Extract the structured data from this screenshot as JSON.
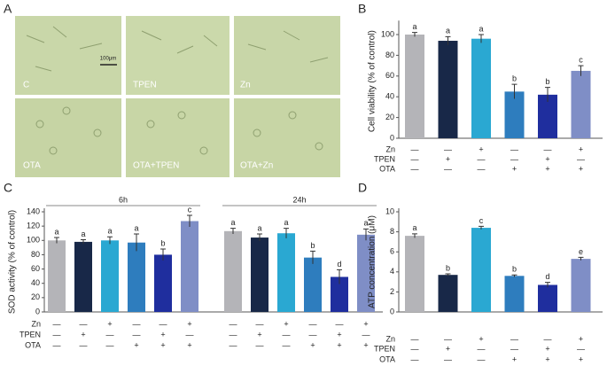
{
  "panel_a": {
    "label": "A",
    "images": [
      "C",
      "TPEN",
      "Zn",
      "OTA",
      "OTA+TPEN",
      "OTA+Zn"
    ],
    "scale_bar": "100μm"
  },
  "chart_data": [
    {
      "type": "bar",
      "panel": "B",
      "ylabel": "Cell viability (% of control)",
      "ylim": [
        0,
        110
      ],
      "yticks": [
        0,
        20,
        40,
        60,
        80,
        100
      ],
      "colors": [
        "#b4b4b8",
        "#182848",
        "#2aa8d2",
        "#2e7dbe",
        "#1f2e9e",
        "#7f8ec6"
      ],
      "values": [
        100,
        94,
        96,
        45,
        42,
        65
      ],
      "errors": [
        2,
        4,
        4,
        7,
        7,
        5
      ],
      "letters": [
        "a",
        "a",
        "a",
        "b",
        "b",
        "c"
      ],
      "treatments": [
        {
          "name": "Zn",
          "signs": [
            "—",
            "—",
            "+",
            "—",
            "—",
            "+"
          ]
        },
        {
          "name": "TPEN",
          "signs": [
            "—",
            "+",
            "—",
            "—",
            "+",
            "—"
          ]
        },
        {
          "name": "OTA",
          "signs": [
            "—",
            "—",
            "—",
            "+",
            "+",
            "+"
          ]
        }
      ]
    },
    {
      "type": "bar",
      "panel": "C",
      "ylabel": "SOD activity (% of control)",
      "ylim": [
        0,
        140
      ],
      "yticks": [
        0,
        20,
        40,
        60,
        80,
        100,
        120,
        140
      ],
      "colors": [
        "#b4b4b8",
        "#182848",
        "#2aa8d2",
        "#2e7dbe",
        "#1f2e9e",
        "#7f8ec6"
      ],
      "groups": [
        {
          "name": "6h",
          "values": [
            100,
            98,
            100,
            97,
            80,
            127
          ],
          "errors": [
            4,
            3,
            5,
            12,
            8,
            8
          ],
          "letters": [
            "a",
            "a",
            "a",
            "a",
            "b",
            "c"
          ]
        },
        {
          "name": "24h",
          "values": [
            113,
            104,
            110,
            76,
            49,
            108
          ],
          "errors": [
            4,
            5,
            7,
            9,
            10,
            8
          ],
          "letters": [
            "a",
            "a",
            "a",
            "b",
            "d",
            "a"
          ]
        }
      ],
      "treatments": [
        {
          "name": "Zn",
          "signs": [
            "—",
            "—",
            "+",
            "—",
            "—",
            "+",
            "—",
            "—",
            "+",
            "—",
            "—",
            "+"
          ]
        },
        {
          "name": "TPEN",
          "signs": [
            "—",
            "+",
            "—",
            "—",
            "+",
            "—",
            "—",
            "+",
            "—",
            "—",
            "+",
            "—"
          ]
        },
        {
          "name": "OTA",
          "signs": [
            "—",
            "—",
            "—",
            "+",
            "+",
            "+",
            "—",
            "—",
            "—",
            "+",
            "+",
            "+"
          ]
        }
      ]
    },
    {
      "type": "bar",
      "panel": "D",
      "ylabel": "ATP concentration (μM)",
      "ylim": [
        0,
        10
      ],
      "yticks": [
        0,
        2,
        4,
        6,
        8,
        10
      ],
      "colors": [
        "#b4b4b8",
        "#182848",
        "#2aa8d2",
        "#2e7dbe",
        "#1f2e9e",
        "#7f8ec6"
      ],
      "values": [
        7.6,
        3.7,
        8.4,
        3.6,
        2.7,
        5.3
      ],
      "errors": [
        0.2,
        0.1,
        0.15,
        0.1,
        0.25,
        0.15
      ],
      "letters": [
        "a",
        "b",
        "c",
        "b",
        "d",
        "e"
      ],
      "treatments": [
        {
          "name": "Zn",
          "signs": [
            "—",
            "—",
            "+",
            "—",
            "—",
            "+"
          ]
        },
        {
          "name": "TPEN",
          "signs": [
            "—",
            "+",
            "—",
            "—",
            "+",
            "—"
          ]
        },
        {
          "name": "OTA",
          "signs": [
            "—",
            "—",
            "—",
            "+",
            "+",
            "+"
          ]
        }
      ]
    }
  ]
}
